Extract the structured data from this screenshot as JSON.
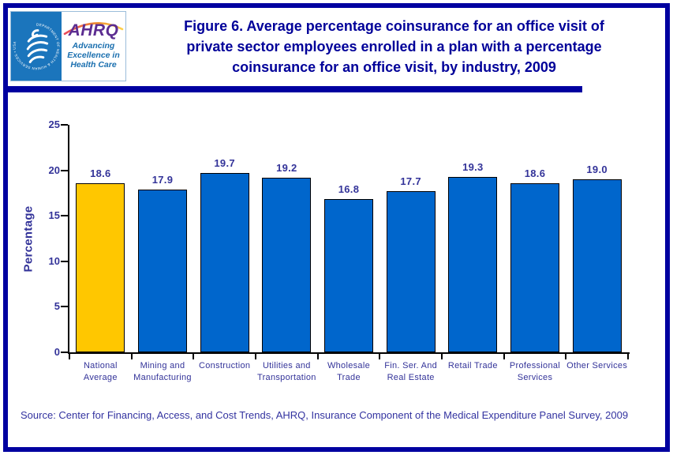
{
  "header": {
    "logo": {
      "seal_text": "DEPARTMENT OF HEALTH & HUMAN SERVICES • USA",
      "ahrq_acronym": "AHRQ",
      "tagline": "Advancing\nExcellence in\nHealth Care"
    },
    "title": "Figure 6. Average percentage coinsurance for an office visit of\nprivate sector employees enrolled in a plan with a percentage\ncoinsurance for an office visit, by industry, 2009"
  },
  "chart_data": {
    "type": "bar",
    "title": "Figure 6. Average percentage coinsurance for an office visit of private sector employees enrolled in a plan with a percentage coinsurance for an office visit, by industry, 2009",
    "xlabel": "",
    "ylabel": "Percentage",
    "ylim": [
      0,
      25
    ],
    "yticks": [
      0,
      5,
      10,
      15,
      20,
      25
    ],
    "grid": false,
    "legend": null,
    "categories": [
      "National Average",
      "Mining and Manufacturing",
      "Construction",
      "Utilities and Transportation",
      "Wholesale Trade",
      "Fin. Ser. And Real Estate",
      "Retail Trade",
      "Professional Services",
      "Other Services"
    ],
    "category_label_lines": [
      [
        "National",
        "Average"
      ],
      [
        "Mining and",
        "Manufacturing"
      ],
      [
        "Construction"
      ],
      [
        "Utilities and",
        "Transportation"
      ],
      [
        "Wholesale",
        "Trade"
      ],
      [
        "Fin. Ser. And",
        "Real Estate"
      ],
      [
        "Retail Trade"
      ],
      [
        "Professional",
        "Services"
      ],
      [
        "Other Services"
      ]
    ],
    "values": [
      18.6,
      17.9,
      19.7,
      19.2,
      16.8,
      17.7,
      19.3,
      18.6,
      19.0
    ],
    "highlight_index": 0,
    "bar_color": "#0066CC",
    "highlight_color": "#FFC700"
  },
  "source": "Source: Center for Financing, Access, and Cost Trends, AHRQ, Insurance Component of the Medical Expenditure Panel Survey, 2009",
  "colors": {
    "frame_navy": "#0000A0",
    "title_navy": "#000099",
    "chart_text": "#333399",
    "source_text": "#3333A0",
    "logo_blue": "#1B75BC",
    "ahrq_purple": "#5C2D91"
  }
}
